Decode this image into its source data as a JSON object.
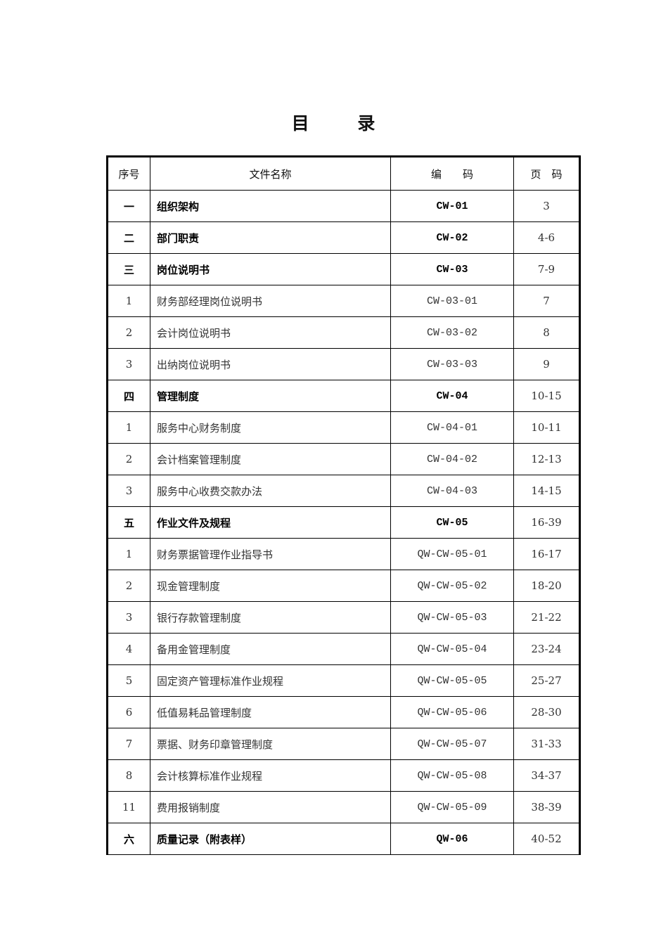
{
  "title": "目 录",
  "headers": {
    "no": "序号",
    "name": "文件名称",
    "code": "编　　码",
    "page": "页　码"
  },
  "rows": [
    {
      "no": "一",
      "name": "组织架构",
      "code": "CW-01",
      "page": "3",
      "section": true
    },
    {
      "no": "二",
      "name": "部门职责",
      "code": "CW-02",
      "page": "4-6",
      "section": true
    },
    {
      "no": "三",
      "name": "岗位说明书",
      "code": "CW-03",
      "page": "7-9",
      "section": true
    },
    {
      "no": "1",
      "name": "财务部经理岗位说明书",
      "code": "CW-03-01",
      "page": "7",
      "section": false
    },
    {
      "no": "2",
      "name": "会计岗位说明书",
      "code": "CW-03-02",
      "page": "8",
      "section": false
    },
    {
      "no": "3",
      "name": "出纳岗位说明书",
      "code": "CW-03-03",
      "page": "9",
      "section": false
    },
    {
      "no": "四",
      "name": "管理制度",
      "code": "CW-04",
      "page": "10-15",
      "section": true
    },
    {
      "no": "1",
      "name": "服务中心财务制度",
      "code": "CW-04-01",
      "page": "10-11",
      "section": false
    },
    {
      "no": "2",
      "name": "会计档案管理制度",
      "code": "CW-04-02",
      "page": "12-13",
      "section": false
    },
    {
      "no": "3",
      "name": "服务中心收费交款办法",
      "code": "CW-04-03",
      "page": "14-15",
      "section": false
    },
    {
      "no": "五",
      "name": "作业文件及规程",
      "code": "CW-05",
      "page": "16-39",
      "section": true
    },
    {
      "no": "1",
      "name": "财务票据管理作业指导书",
      "code": "QW-CW-05-01",
      "page": "16-17",
      "section": false
    },
    {
      "no": "2",
      "name": "现金管理制度",
      "code": "QW-CW-05-02",
      "page": "18-20",
      "section": false
    },
    {
      "no": "3",
      "name": "银行存款管理制度",
      "code": "QW-CW-05-03",
      "page": "21-22",
      "section": false
    },
    {
      "no": "4",
      "name": "备用金管理制度",
      "code": "QW-CW-05-04",
      "page": "23-24",
      "section": false
    },
    {
      "no": "5",
      "name": "固定资产管理标准作业规程",
      "code": "QW-CW-05-05",
      "page": "25-27",
      "section": false
    },
    {
      "no": "6",
      "name": "低值易耗品管理制度",
      "code": "QW-CW-05-06",
      "page": "28-30",
      "section": false
    },
    {
      "no": "7",
      "name": "票据、财务印章管理制度",
      "code": "QW-CW-05-07",
      "page": "31-33",
      "section": false
    },
    {
      "no": "8",
      "name": "会计核算标准作业规程",
      "code": "QW-CW-05-08",
      "page": "34-37",
      "section": false
    },
    {
      "no": "11",
      "name": "费用报销制度",
      "code": "QW-CW-05-09",
      "page": "38-39",
      "section": false
    },
    {
      "no": "六",
      "name": "质量记录（附表样）",
      "code": "QW-06",
      "page": "40-52",
      "section": true
    }
  ]
}
